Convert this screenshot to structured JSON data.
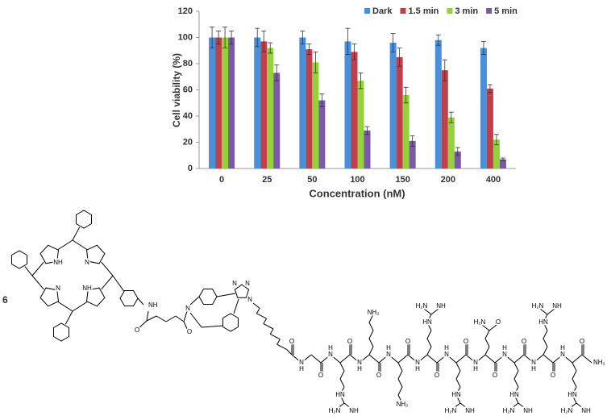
{
  "chart_data": {
    "type": "bar",
    "x_label": "Concentration (nM)",
    "y_label": "Cell viability (%)",
    "categories": [
      "0",
      "25",
      "50",
      "100",
      "150",
      "200",
      "400"
    ],
    "series": [
      {
        "name": "Dark",
        "color": "#4a8fd9",
        "values": [
          100,
          100,
          100,
          97,
          96,
          98,
          92
        ],
        "errors": [
          8,
          7,
          5,
          10,
          7,
          4,
          5
        ]
      },
      {
        "name": "1.5 min",
        "color": "#c0404a",
        "values": [
          100,
          97,
          91,
          89,
          85,
          75,
          61
        ],
        "errors": [
          5,
          8,
          4,
          6,
          7,
          8,
          3
        ]
      },
      {
        "name": "3 min",
        "color": "#93d13e",
        "values": [
          100,
          92,
          81,
          67,
          56,
          39,
          22
        ],
        "errors": [
          8,
          4,
          8,
          6,
          6,
          4,
          4
        ]
      },
      {
        "name": "5 min",
        "color": "#7a5aa6",
        "values": [
          100,
          73,
          52,
          29,
          21,
          13,
          7
        ],
        "errors": [
          5,
          6,
          5,
          3,
          4,
          3,
          1
        ]
      }
    ],
    "ylim": [
      0,
      120
    ],
    "yticks": [
      0,
      20,
      40,
      60,
      80,
      100,
      120
    ],
    "grid": false,
    "legend": "top-right"
  },
  "structure": {
    "compound": "6",
    "labels": {
      "n": "N",
      "nh": "NH",
      "hn": "HN",
      "h": "H",
      "o": "O",
      "nh2": "NH₂",
      "h2n": "H₂N"
    }
  }
}
